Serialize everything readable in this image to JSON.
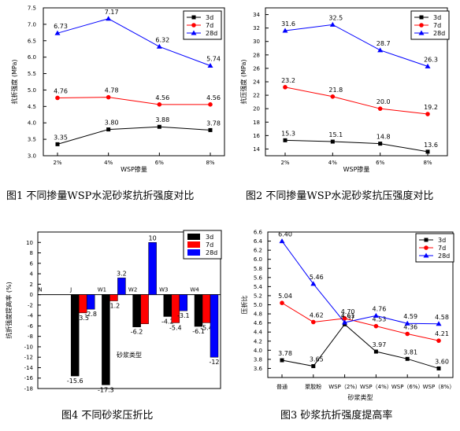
{
  "chart_data": [
    {
      "type": "line",
      "title": "",
      "xlabel": "WSP掺量",
      "ylabel": "抗折强度 (MPa)",
      "categories": [
        "2%",
        "4%",
        "6%",
        "8%"
      ],
      "ylim": [
        3.0,
        7.5
      ],
      "yticks": [
        "3.0",
        "3.5",
        "4.0",
        "4.5",
        "5.0",
        "5.5",
        "6.0",
        "6.5",
        "7.0",
        "7.5"
      ],
      "series": [
        {
          "name": "3d",
          "marker": "square",
          "color": "#000000",
          "values": [
            3.35,
            3.8,
            3.88,
            3.78
          ],
          "labels": [
            "3.35",
            "3.80",
            "3.88",
            "3.78"
          ]
        },
        {
          "name": "7d",
          "marker": "circle",
          "color": "#ff0000",
          "values": [
            4.76,
            4.78,
            4.56,
            4.56
          ],
          "labels": [
            "4.76",
            "4.78",
            "4.56",
            "4.56"
          ]
        },
        {
          "name": "28d",
          "marker": "triangle",
          "color": "#0000ff",
          "values": [
            6.73,
            7.17,
            6.32,
            5.74
          ],
          "labels": [
            "6.73",
            "7.17",
            "6.32",
            "5.74"
          ]
        }
      ],
      "legend": "top-right",
      "caption": "图1  不同掺量WSP水泥砂浆抗折强度对比"
    },
    {
      "type": "line",
      "title": "",
      "xlabel": "WSP掺量",
      "ylabel": "抗压强度 (MPa)",
      "categories": [
        "2%",
        "4%",
        "6%",
        "8%"
      ],
      "ylim": [
        13,
        35
      ],
      "yticks": [
        "14",
        "16",
        "18",
        "20",
        "22",
        "24",
        "26",
        "28",
        "30",
        "32",
        "34"
      ],
      "series": [
        {
          "name": "3d",
          "marker": "square",
          "color": "#000000",
          "values": [
            15.3,
            15.1,
            14.8,
            13.6
          ],
          "labels": [
            "15.3",
            "15.1",
            "14.8",
            "13.6"
          ]
        },
        {
          "name": "7d",
          "marker": "circle",
          "color": "#ff0000",
          "values": [
            23.2,
            21.8,
            20.0,
            19.2
          ],
          "labels": [
            "23.2",
            "21.8",
            "20.0",
            "19.2"
          ]
        },
        {
          "name": "28d",
          "marker": "triangle",
          "color": "#0000ff",
          "values": [
            31.6,
            32.5,
            28.7,
            26.3
          ],
          "labels": [
            "31.6",
            "32.5",
            "28.7",
            "26.3"
          ]
        }
      ],
      "legend": "top-right",
      "caption": "图2  不同掺量WSP水泥砂浆抗压强度对比"
    },
    {
      "type": "bar",
      "title": "",
      "xlabel": "砂浆类型",
      "ylabel": "抗折强度提高率 (%)",
      "categories": [
        "N",
        "J",
        "W1",
        "W2",
        "W3",
        "W4"
      ],
      "ylim": [
        -18,
        12
      ],
      "yticks": [
        "-18",
        "-16",
        "-14",
        "-12",
        "-10",
        "-8",
        "-6",
        "-4",
        "-2",
        "0",
        "2",
        "4",
        "6",
        "8",
        "10"
      ],
      "series": [
        {
          "name": "3d",
          "color": "#000000",
          "values": [
            0,
            -15.6,
            -17.3,
            -6.2,
            -4.2,
            -6.1
          ],
          "labels": [
            "",
            "-15.6",
            "-17.3",
            "-6.2",
            "-4.2",
            "-6.1"
          ]
        },
        {
          "name": "7d",
          "color": "#ff0000",
          "values": [
            0,
            -3.5,
            -1.2,
            -5.6,
            -5.4,
            -5.4
          ],
          "labels": [
            "",
            "-3.5",
            "-1.2",
            "",
            "-5.4",
            "-5.4"
          ]
        },
        {
          "name": "28d",
          "color": "#0000ff",
          "values": [
            0,
            -2.8,
            3.2,
            10,
            -3.1,
            -12
          ],
          "labels": [
            "",
            "-2.8",
            "3.2",
            "10",
            "-3.1",
            "-12"
          ]
        }
      ],
      "legend": "top-right",
      "caption": "图4  不同砂浆压折比"
    },
    {
      "type": "line",
      "title": "",
      "xlabel": "砂浆类型",
      "ylabel": "压折比",
      "categories": [
        "普通",
        "聚胶粉",
        "WSP（2%）",
        "WSP（4%）",
        "WSP（6%）",
        "WSP（8%）"
      ],
      "ylim": [
        3.4,
        6.6
      ],
      "yticks": [
        "3.6",
        "3.8",
        "4.0",
        "4.2",
        "4.4",
        "4.6",
        "4.8",
        "5.0",
        "5.2",
        "5.4",
        "5.6",
        "5.8",
        "6.0",
        "6.2",
        "6.4",
        "6.6"
      ],
      "series": [
        {
          "name": "3d",
          "marker": "square",
          "color": "#000000",
          "values": [
            3.78,
            3.65,
            4.57,
            3.97,
            3.81,
            3.6
          ],
          "labels": [
            "3.78",
            "3.65",
            "4.57",
            "3.97",
            "3.81",
            "3.60"
          ]
        },
        {
          "name": "7d",
          "marker": "circle",
          "color": "#ff0000",
          "values": [
            5.04,
            4.62,
            4.7,
            4.53,
            4.36,
            4.21
          ],
          "labels": [
            "5.04",
            "4.62",
            "4.70",
            "4.53",
            "4.36",
            "4.21"
          ]
        },
        {
          "name": "28d",
          "marker": "triangle",
          "color": "#0000ff",
          "values": [
            6.4,
            5.46,
            4.61,
            4.76,
            4.59,
            4.58
          ],
          "labels": [
            "6.40",
            "5.46",
            "4.61",
            "4.76",
            "4.59",
            "4.58"
          ]
        }
      ],
      "legend": "top-right",
      "caption": "图3  砂浆抗折强度提高率"
    }
  ]
}
